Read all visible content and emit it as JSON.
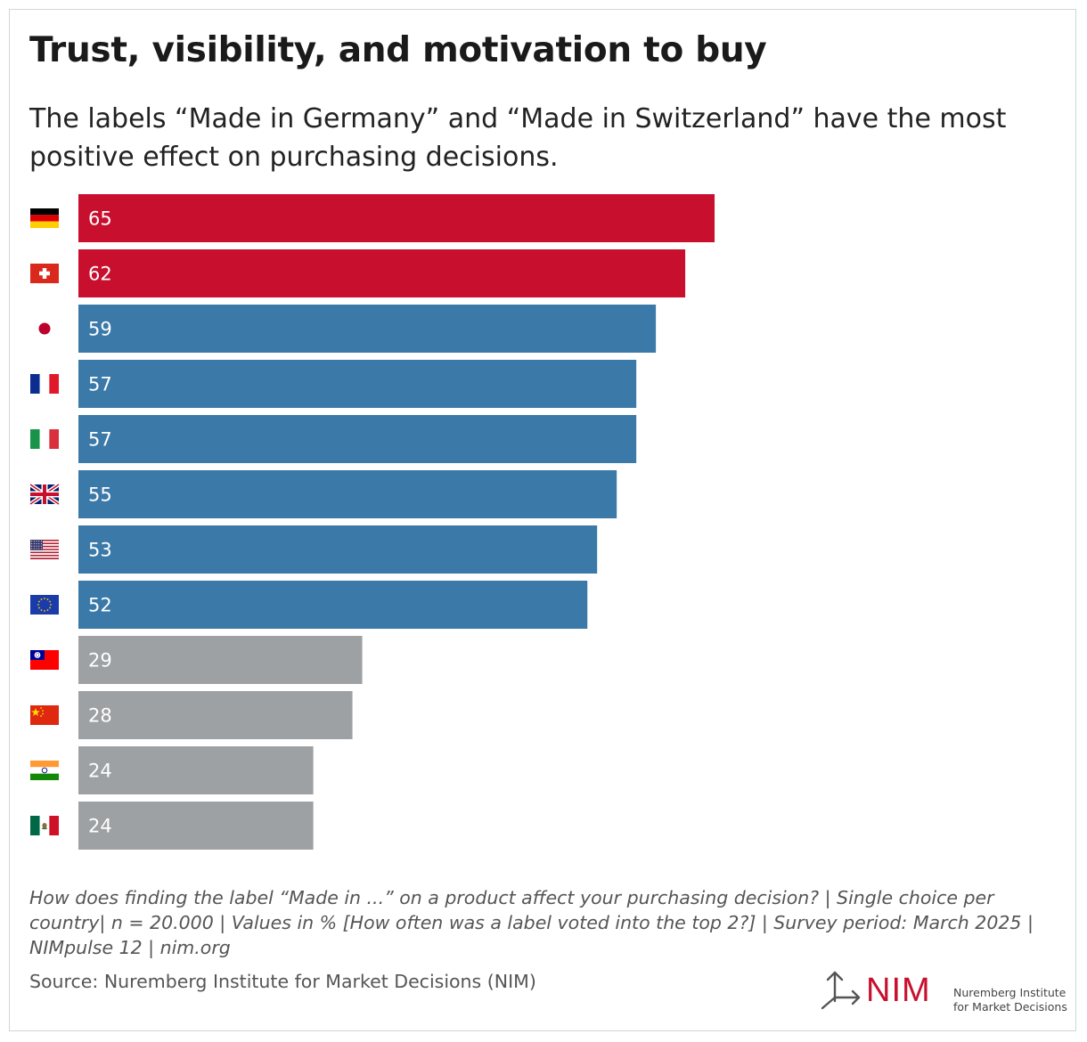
{
  "title": "Trust, visibility, and motivation to buy",
  "subtitle": "The labels “Made in Germany” and “Made in Switzerland” have the most positive effect on purchasing decisions.",
  "note": "How does finding the label “Made in ...” on a product affect your purchasing decision? | Single choice per country| n = 20.000 | Values in % [How often was a label voted into the top 2?] | Survey period: March 2025 | NIMpulse 12 | nim.org",
  "source": "Source: Nuremberg Institute for Market Decisions (NIM)",
  "logo": {
    "mark": "NIM",
    "line1": "Nuremberg Institute",
    "line2": "for Market Decisions",
    "icon": "arrow-split-icon"
  },
  "colors": {
    "top": "#c8102e",
    "mid": "#3b79a8",
    "low": "#9ea1a4"
  },
  "chart_data": {
    "type": "bar",
    "orientation": "horizontal",
    "unit": "%",
    "categories": [
      "Germany",
      "Switzerland",
      "Japan",
      "France",
      "Italy",
      "United Kingdom",
      "USA",
      "European Union",
      "Taiwan",
      "China",
      "India",
      "Mexico"
    ],
    "flag_icons": [
      "germany-flag-icon",
      "switzerland-flag-icon",
      "japan-flag-icon",
      "france-flag-icon",
      "italy-flag-icon",
      "uk-flag-icon",
      "usa-flag-icon",
      "eu-flag-icon",
      "taiwan-flag-icon",
      "china-flag-icon",
      "india-flag-icon",
      "mexico-flag-icon"
    ],
    "values": [
      65,
      62,
      59,
      57,
      57,
      55,
      53,
      52,
      29,
      28,
      24,
      24
    ],
    "groups": [
      "top",
      "top",
      "mid",
      "mid",
      "mid",
      "mid",
      "mid",
      "mid",
      "low",
      "low",
      "low",
      "low"
    ],
    "xlim": [
      0,
      100
    ],
    "grid": false,
    "legend": "none"
  }
}
